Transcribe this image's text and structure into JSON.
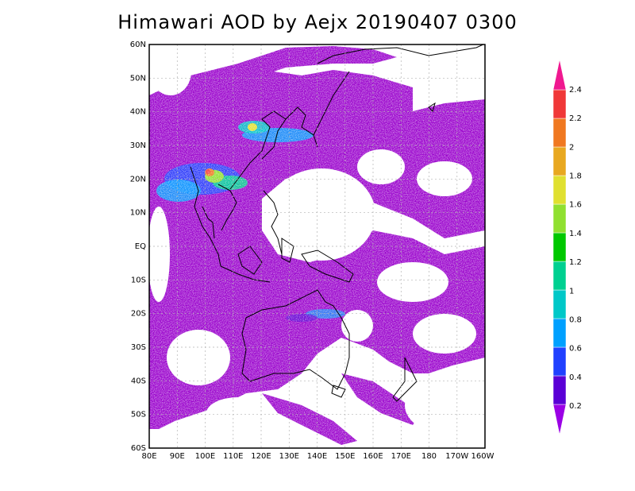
{
  "title": "Himawari AOD by Aejx 20190407 0300",
  "map": {
    "lat_labels": [
      "60N",
      "50N",
      "40N",
      "30N",
      "20N",
      "10N",
      "EQ",
      "10S",
      "20S",
      "30S",
      "40S",
      "50S",
      "60S"
    ],
    "lon_labels": [
      "80E",
      "90E",
      "100E",
      "110E",
      "120E",
      "130E",
      "140E",
      "150E",
      "160E",
      "170E",
      "180",
      "170W",
      "160W"
    ],
    "lat_range": [
      -60,
      60
    ],
    "lon_range": [
      80,
      200
    ],
    "gridlines": true
  },
  "colorbar": {
    "labels": [
      "0.2",
      "0.4",
      "0.6",
      "0.8",
      "1",
      "1.2",
      "1.4",
      "1.6",
      "1.8",
      "2",
      "2.2",
      "2.4"
    ],
    "colors": [
      "#9b00e6",
      "#5a00d6",
      "#2040ff",
      "#00a0ff",
      "#00c8c8",
      "#00d090",
      "#00c800",
      "#90e030",
      "#e0e030",
      "#e8a820",
      "#f07820",
      "#f03838",
      "#f01890"
    ]
  },
  "colors": {
    "aod_low": "#9900cc",
    "background": "#ffffff",
    "coast": "#000000"
  }
}
